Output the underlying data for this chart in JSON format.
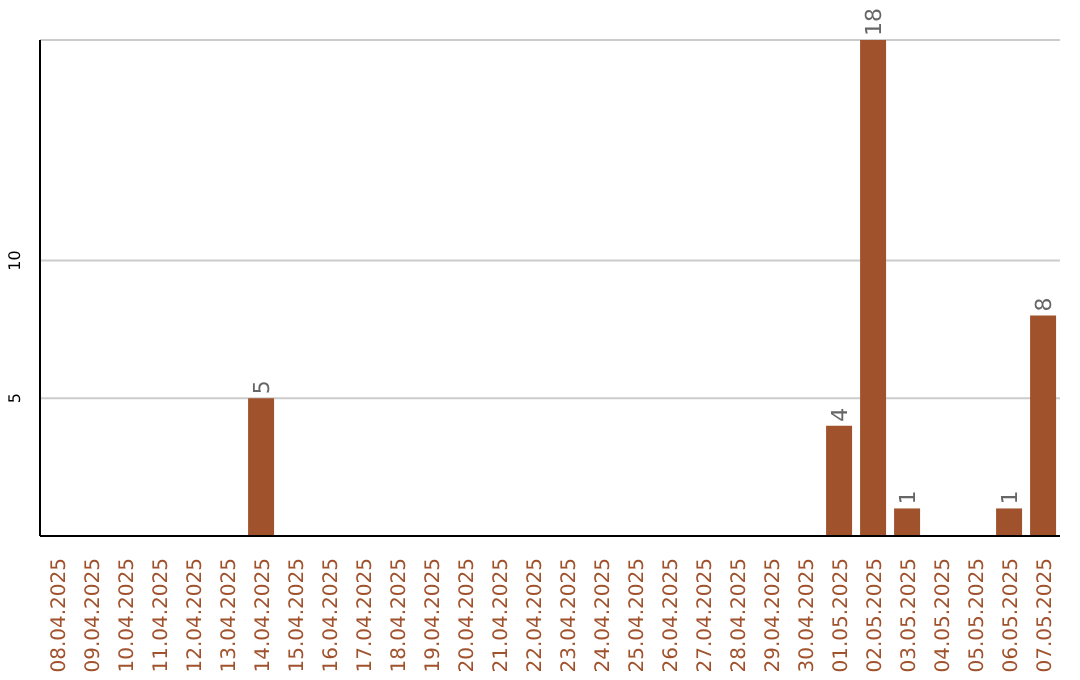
{
  "chart_data": {
    "type": "bar",
    "categories": [
      "08.04.2025",
      "09.04.2025",
      "10.04.2025",
      "11.04.2025",
      "12.04.2025",
      "13.04.2025",
      "14.04.2025",
      "15.04.2025",
      "16.04.2025",
      "17.04.2025",
      "18.04.2025",
      "19.04.2025",
      "20.04.2025",
      "21.04.2025",
      "22.04.2025",
      "23.04.2025",
      "24.04.2025",
      "25.04.2025",
      "26.04.2025",
      "27.04.2025",
      "28.04.2025",
      "29.04.2025",
      "30.04.2025",
      "01.05.2025",
      "02.05.2025",
      "03.05.2025",
      "04.05.2025",
      "05.05.2025",
      "06.05.2025",
      "07.05.2025"
    ],
    "values": [
      null,
      null,
      null,
      null,
      null,
      null,
      5,
      null,
      null,
      null,
      null,
      null,
      null,
      null,
      null,
      null,
      null,
      null,
      null,
      null,
      null,
      null,
      null,
      4,
      18,
      1,
      null,
      null,
      1,
      8
    ],
    "color": "#a0522d",
    "ylim": [
      0,
      18
    ],
    "yticks": [
      5,
      10
    ],
    "grid": "y",
    "data_labels": true
  }
}
